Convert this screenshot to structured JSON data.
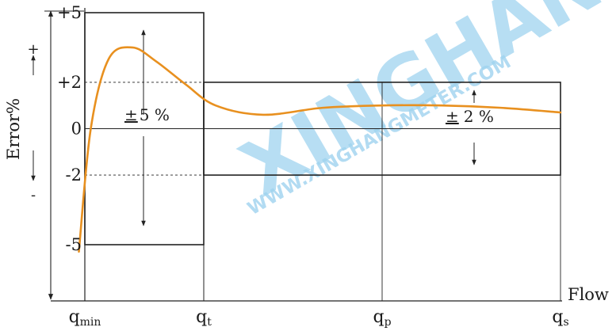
{
  "chart_data": {
    "type": "line",
    "ylabel": "Error%",
    "xlabel": "Flow",
    "y_signs": {
      "plus": "+",
      "minus": "-"
    },
    "y_ticks": [
      {
        "value": 5,
        "label": "+5"
      },
      {
        "value": 2,
        "label": "+2"
      },
      {
        "value": 0,
        "label": "0"
      },
      {
        "value": -2,
        "label": "-2"
      },
      {
        "value": -5,
        "label": "-5"
      }
    ],
    "x_ticks": [
      {
        "key": "qmin",
        "base": "q",
        "sub": "min"
      },
      {
        "key": "qt",
        "base": "q",
        "sub": "t"
      },
      {
        "key": "qp",
        "base": "q",
        "sub": "p"
      },
      {
        "key": "qs",
        "base": "q",
        "sub": "s"
      }
    ],
    "x_positions": {
      "qmin": 0,
      "qt": 1,
      "qp": 2.5,
      "qs": 4
    },
    "ylim": [
      -5,
      5
    ],
    "tolerance_bands": [
      {
        "name": "low-flow zone",
        "from": "qmin",
        "to": "qt",
        "limit": 5,
        "label_sign": "±",
        "label_value": "5 %"
      },
      {
        "name": "high-flow zone",
        "from": "qt",
        "to": "qs",
        "limit": 2,
        "label_sign": "±",
        "label_value": "2 %"
      }
    ],
    "error_curve": {
      "color": "#e8901f",
      "x": [
        -0.05,
        0.05,
        0.2,
        0.4,
        0.6,
        0.85,
        1.1,
        1.5,
        2.0,
        2.5,
        3.0,
        3.5,
        4.0
      ],
      "y": [
        -5.3,
        0,
        3.0,
        3.5,
        2.9,
        1.9,
        1.0,
        0.6,
        0.9,
        1.0,
        1.0,
        0.9,
        0.7
      ]
    },
    "grid": false
  },
  "watermark": {
    "main": "XINGHANG",
    "url": "WWW.XINGHANGMETER.COM",
    "color": "#9fd3ef"
  }
}
